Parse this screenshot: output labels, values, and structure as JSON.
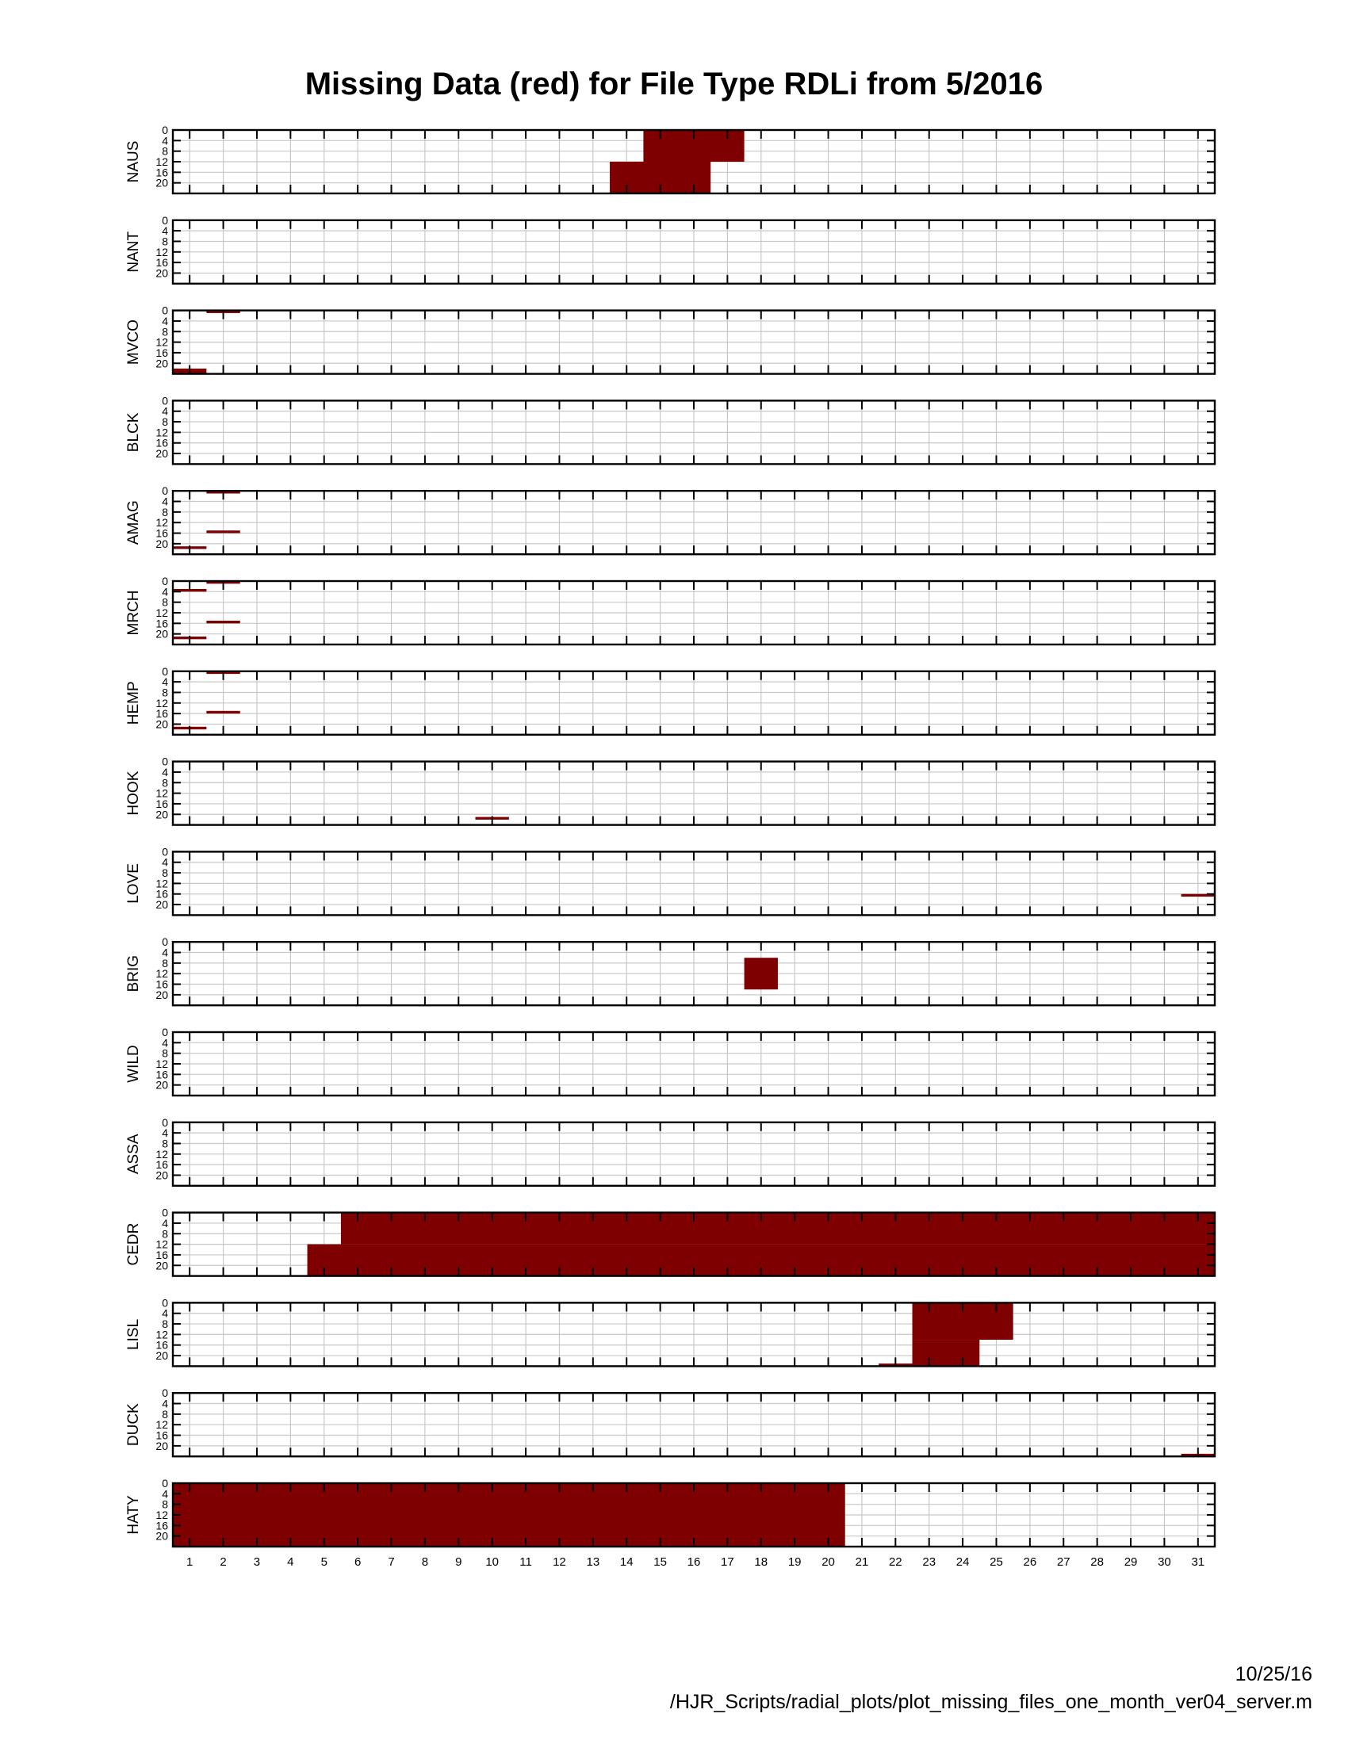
{
  "title": "Missing Data (red) for File Type RDLi from 5/2016",
  "footer": {
    "date": "10/25/16",
    "path": "/HJR_Scripts/radial_plots/plot_missing_files_one_month_ver04_server.m"
  },
  "colors": {
    "missing": "#7f0000",
    "grid": "#c8c8c8",
    "axis": "#000000"
  },
  "chart_data": {
    "type": "heatmap",
    "title": "Missing Data (red) for File Type RDLi from 5/2016",
    "x_ticks": [
      1,
      2,
      3,
      4,
      5,
      6,
      7,
      8,
      9,
      10,
      11,
      12,
      13,
      14,
      15,
      16,
      17,
      18,
      19,
      20,
      21,
      22,
      23,
      24,
      25,
      26,
      27,
      28,
      29,
      30,
      31
    ],
    "xlim": [
      0.5,
      31.5
    ],
    "y_ticks": [
      0,
      4,
      8,
      12,
      16,
      20
    ],
    "ylim": [
      0,
      24
    ],
    "y_direction": "reversed",
    "grid": true,
    "note_units": "x = day of month, y = hour of day",
    "panels": [
      {
        "station": "NAUS",
        "missing": [
          {
            "day_start": 14.5,
            "day_end": 17.5,
            "hour_start": 0,
            "hour_end": 12
          },
          {
            "day_start": 13.5,
            "day_end": 16.5,
            "hour_start": 12,
            "hour_end": 24
          }
        ]
      },
      {
        "station": "NANT",
        "missing": []
      },
      {
        "station": "MVCO",
        "missing": [
          {
            "day_start": 1.5,
            "day_end": 2.5,
            "hour_start": 0,
            "hour_end": 1
          },
          {
            "day_start": 0.5,
            "day_end": 1.5,
            "hour_start": 22,
            "hour_end": 24
          }
        ]
      },
      {
        "station": "BLCK",
        "missing": []
      },
      {
        "station": "AMAG",
        "missing": [
          {
            "day_start": 1.5,
            "day_end": 2.5,
            "hour_start": 0,
            "hour_end": 1
          },
          {
            "day_start": 1.5,
            "day_end": 2.5,
            "hour_start": 15,
            "hour_end": 16
          },
          {
            "day_start": 0.5,
            "day_end": 1.5,
            "hour_start": 21,
            "hour_end": 22
          }
        ]
      },
      {
        "station": "MRCH",
        "missing": [
          {
            "day_start": 1.5,
            "day_end": 2.5,
            "hour_start": 0,
            "hour_end": 1
          },
          {
            "day_start": 0.5,
            "day_end": 1.5,
            "hour_start": 3,
            "hour_end": 4
          },
          {
            "day_start": 1.5,
            "day_end": 2.5,
            "hour_start": 15,
            "hour_end": 16
          },
          {
            "day_start": 0.5,
            "day_end": 1.5,
            "hour_start": 21,
            "hour_end": 22
          }
        ]
      },
      {
        "station": "HEMP",
        "missing": [
          {
            "day_start": 1.5,
            "day_end": 2.5,
            "hour_start": 0,
            "hour_end": 1
          },
          {
            "day_start": 1.5,
            "day_end": 2.5,
            "hour_start": 15,
            "hour_end": 16
          },
          {
            "day_start": 0.5,
            "day_end": 1.5,
            "hour_start": 21,
            "hour_end": 22
          }
        ]
      },
      {
        "station": "HOOK",
        "missing": [
          {
            "day_start": 9.5,
            "day_end": 10.5,
            "hour_start": 21,
            "hour_end": 22
          }
        ]
      },
      {
        "station": "LOVE",
        "missing": [
          {
            "day_start": 30.5,
            "day_end": 31.5,
            "hour_start": 16,
            "hour_end": 17
          }
        ]
      },
      {
        "station": "BRIG",
        "missing": [
          {
            "day_start": 17.5,
            "day_end": 18.5,
            "hour_start": 6,
            "hour_end": 18
          }
        ]
      },
      {
        "station": "WILD",
        "missing": []
      },
      {
        "station": "ASSA",
        "missing": []
      },
      {
        "station": "CEDR",
        "missing": [
          {
            "day_start": 5.5,
            "day_end": 31.5,
            "hour_start": 0,
            "hour_end": 12
          },
          {
            "day_start": 4.5,
            "day_end": 31.5,
            "hour_start": 12,
            "hour_end": 24
          }
        ]
      },
      {
        "station": "LISL",
        "missing": [
          {
            "day_start": 22.5,
            "day_end": 25.5,
            "hour_start": 0,
            "hour_end": 14
          },
          {
            "day_start": 22.5,
            "day_end": 24.5,
            "hour_start": 14,
            "hour_end": 24
          },
          {
            "day_start": 21.5,
            "day_end": 22.5,
            "hour_start": 23,
            "hour_end": 24
          }
        ]
      },
      {
        "station": "DUCK",
        "missing": [
          {
            "day_start": 30.5,
            "day_end": 31.5,
            "hour_start": 23,
            "hour_end": 24
          }
        ]
      },
      {
        "station": "HATY",
        "missing": [
          {
            "day_start": 0.5,
            "day_end": 20.5,
            "hour_start": 0,
            "hour_end": 24
          }
        ]
      }
    ]
  }
}
